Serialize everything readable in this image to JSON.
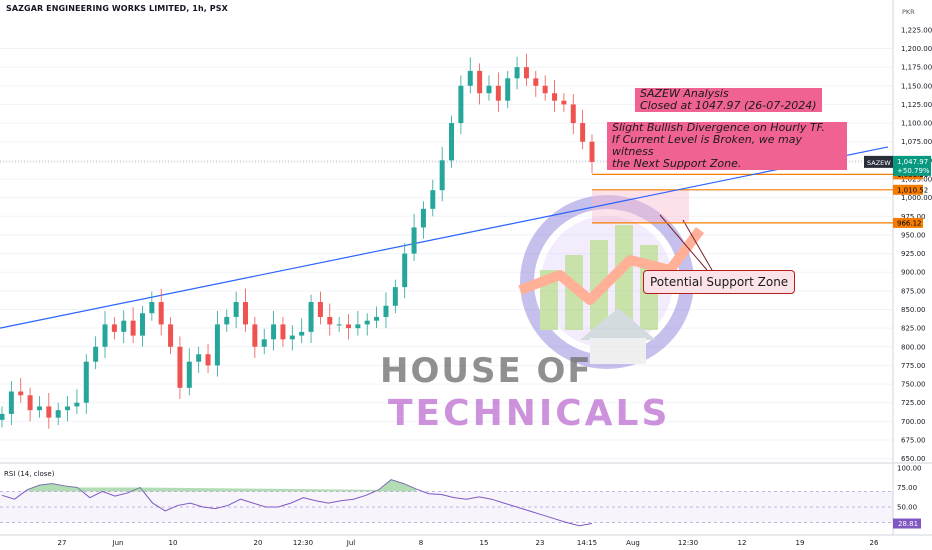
{
  "header": {
    "title": "SAZGAR ENGINEERING WORKS LIMITED, 1h, PSX"
  },
  "currency": "PKR",
  "price_scale": {
    "labels": [
      "1,225.00",
      "1,200.00",
      "1,175.00",
      "1,150.00",
      "1,125.00",
      "1,100.00",
      "1,075.00",
      "1,050.00",
      "1,025.00",
      "1,000.00",
      "975.00",
      "950.00",
      "925.00",
      "900.00",
      "875.00",
      "850.00",
      "825.00",
      "800.00",
      "775.00",
      "750.00",
      "725.00",
      "700.00",
      "675.00",
      "650.00"
    ],
    "values": [
      1225,
      1200,
      1175,
      1150,
      1125,
      1100,
      1075,
      1050,
      1025,
      1000,
      975,
      950,
      925,
      900,
      875,
      850,
      825,
      800,
      775,
      750,
      725,
      700,
      675,
      650
    ]
  },
  "current": {
    "symbol": "SAZEW",
    "price": "1,047.97",
    "change": "+50.79%"
  },
  "levels": [
    {
      "label": "1,031.21",
      "value": 1031.21
    },
    {
      "label": "1,010.52",
      "value": 1010.52
    },
    {
      "label": "966.12",
      "value": 966.12
    }
  ],
  "annotations": {
    "analysis_title": "SAZEW Analysis",
    "analysis_close": "Closed at 1047.97 (26-07-2024)",
    "note_line1": "Slight Bullish Divergence on Hourly TF.",
    "note_line2": "If Current Level is Broken, we may witness",
    "note_line3": "the Next Support Zone.",
    "support_label": "Potential Support Zone"
  },
  "watermark": {
    "line1": "HOUSE OF",
    "line2": "TECHNICALS"
  },
  "rsi": {
    "label": "RSI (14, close)",
    "levels": [
      "100.00",
      "75.00",
      "50.00"
    ],
    "current": "28.81"
  },
  "time_axis": [
    "27",
    "Jun",
    "10",
    "20",
    "12:30",
    "Jul",
    "8",
    "15",
    "23",
    "14:15",
    "Aug",
    "12:30",
    "12",
    "19",
    "26"
  ],
  "colors": {
    "up": "#26a69a",
    "down": "#ef5350",
    "trend": "#2962ff",
    "level": "#f57c00",
    "rsi": "#7e57c2",
    "box": "#f06292"
  },
  "chart_data": {
    "type": "candlestick",
    "title": "SAZGAR ENGINEERING WORKS LIMITED, 1h, PSX",
    "ylim": [
      650,
      1235
    ],
    "close_series_approx": [
      710,
      740,
      735,
      715,
      720,
      705,
      715,
      720,
      725,
      780,
      800,
      830,
      820,
      835,
      815,
      845,
      860,
      830,
      800,
      745,
      780,
      790,
      775,
      830,
      840,
      860,
      830,
      800,
      810,
      830,
      810,
      815,
      820,
      860,
      840,
      830,
      830,
      825,
      830,
      835,
      840,
      855,
      880,
      925,
      960,
      985,
      1010,
      1050,
      1100,
      1150,
      1170,
      1140,
      1150,
      1130,
      1160,
      1175,
      1160,
      1150,
      1140,
      1130,
      1125,
      1100,
      1075,
      1047.97
    ],
    "rsi_series_approx": [
      65,
      60,
      72,
      78,
      80,
      77,
      75,
      62,
      70,
      64,
      68,
      75,
      55,
      45,
      52,
      55,
      50,
      48,
      52,
      60,
      55,
      50,
      50,
      55,
      62,
      58,
      55,
      58,
      60,
      65,
      72,
      85,
      80,
      73,
      67,
      66,
      62,
      60,
      63,
      60,
      55,
      50,
      45,
      40,
      35,
      30,
      26,
      28.81
    ],
    "trendline": [
      [
        0,
        825
      ],
      [
        1,
        1068
      ]
    ]
  }
}
